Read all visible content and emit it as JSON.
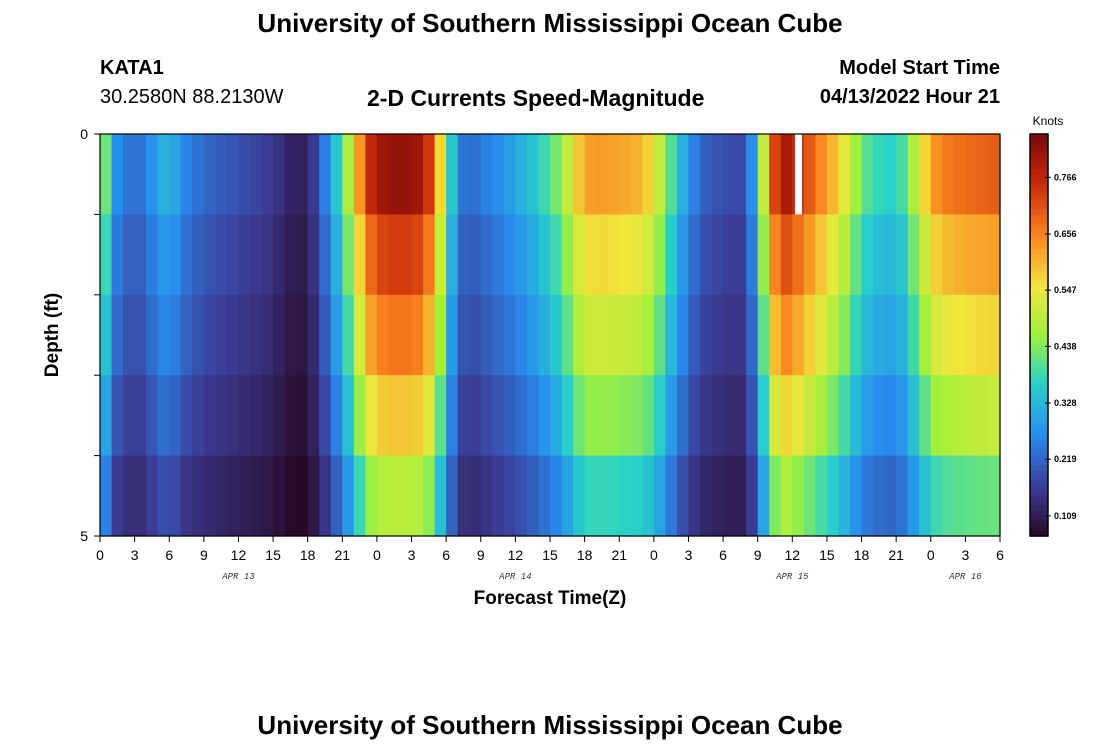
{
  "header": {
    "title": "University of Southern Mississippi Ocean Cube",
    "station_name": "KATA1",
    "station_coords": "30.2580N  88.2130W",
    "subtitle": "2-D Currents Speed-Magnitude",
    "start_label": "Model Start Time",
    "start_value": "04/13/2022 Hour 21"
  },
  "footer": {
    "title": "University of Southern Mississippi Ocean Cube"
  },
  "chart_data": {
    "type": "heatmap",
    "title": "2-D Currents Speed-Magnitude",
    "xlabel": "Forecast Time(Z)",
    "ylabel": "Depth (ft)",
    "colorbar_label": "Knots",
    "colorbar_ticks": [
      "0.766",
      "0.656",
      "0.547",
      "0.438",
      "0.328",
      "0.219",
      "0.109"
    ],
    "value_range": [
      0.07,
      0.85
    ],
    "x_tick_labels": [
      "0",
      "3",
      "6",
      "9",
      "12",
      "15",
      "18",
      "21",
      "0",
      "3",
      "6",
      "9",
      "12",
      "15",
      "18",
      "21",
      "0",
      "3",
      "6",
      "9",
      "12",
      "15",
      "18",
      "21",
      "0",
      "3",
      "6"
    ],
    "day_labels": [
      "APR 13",
      "APR 14",
      "APR 15",
      "APR 16"
    ],
    "day_label_hours": [
      12,
      36,
      60,
      75
    ],
    "y_tick_labels": [
      "0",
      "5"
    ],
    "y_range": [
      0,
      5
    ],
    "hours_span": 78,
    "rows": 5,
    "speed_profile_knots": {
      "0": 0.55,
      "1": 0.29,
      "2": 0.25,
      "3": 0.22,
      "4": 0.25,
      "5": 0.3,
      "6": 0.33,
      "7": 0.27,
      "9": 0.22,
      "11": 0.2,
      "13": 0.18,
      "15": 0.16,
      "16": 0.13,
      "17": 0.11,
      "18": 0.12,
      "19": 0.2,
      "20": 0.3,
      "21": 0.4,
      "22": 0.55,
      "23": 0.72,
      "24": 0.8,
      "26": 0.82,
      "28": 0.8,
      "29": 0.68,
      "30": 0.45,
      "31": 0.25,
      "32": 0.22,
      "34": 0.26,
      "36": 0.3,
      "38": 0.36,
      "40": 0.45,
      "41": 0.55,
      "42": 0.62,
      "43": 0.63,
      "45": 0.62,
      "47": 0.6,
      "48": 0.55,
      "49": 0.45,
      "50": 0.35,
      "51": 0.28,
      "52": 0.22,
      "53": 0.2,
      "55": 0.18,
      "56": 0.19,
      "57": 0.35,
      "58": 0.65,
      "59": 0.8,
      "60": 0.78,
      "61": 0.72,
      "62": 0.68,
      "63": 0.62,
      "64": 0.58,
      "65": 0.5,
      "66": 0.42,
      "67": 0.38,
      "68": 0.37,
      "69": 0.36,
      "70": 0.42,
      "71": 0.52,
      "72": 0.62,
      "73": 0.66,
      "75": 0.68,
      "78": 0.7
    },
    "depth_factors": [
      1.0,
      0.9,
      0.82,
      0.72,
      0.6
    ],
    "missing_cell": {
      "hour": 60.5,
      "row": 0
    }
  }
}
